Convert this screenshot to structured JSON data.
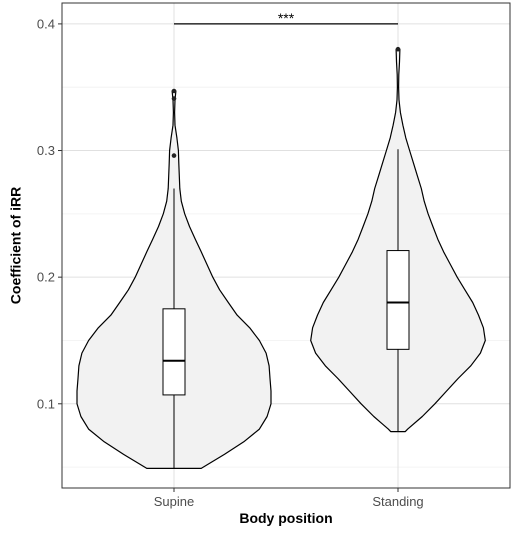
{
  "chart_data": {
    "type": "violin",
    "title": "",
    "xlabel": "Body position",
    "ylabel": "Coefficient of iRR",
    "categories": [
      "Supine",
      "Standing"
    ],
    "ylim": [
      0.0335,
      0.4165
    ],
    "yticks": [
      0.1,
      0.2,
      0.3,
      0.4
    ],
    "ytick_labels": [
      "0.1",
      "0.2",
      "0.3",
      "0.4"
    ],
    "grid": true,
    "fill_color": "#f2f2f2",
    "line_color": "#000000",
    "groups": [
      {
        "label": "Supine",
        "box": {
          "min": 0.049,
          "q1": 0.107,
          "median": 0.134,
          "q3": 0.175,
          "max": 0.27
        },
        "outliers": [
          0.347,
          0.341,
          0.296
        ],
        "density": [
          [
            0.049,
            0.28
          ],
          [
            0.06,
            0.52
          ],
          [
            0.07,
            0.72
          ],
          [
            0.08,
            0.88
          ],
          [
            0.09,
            0.96
          ],
          [
            0.1,
            1.0
          ],
          [
            0.11,
            1.0
          ],
          [
            0.12,
            0.99
          ],
          [
            0.13,
            0.98
          ],
          [
            0.14,
            0.95
          ],
          [
            0.15,
            0.88
          ],
          [
            0.16,
            0.78
          ],
          [
            0.17,
            0.65
          ],
          [
            0.18,
            0.56
          ],
          [
            0.19,
            0.47
          ],
          [
            0.2,
            0.4
          ],
          [
            0.21,
            0.34
          ],
          [
            0.22,
            0.28
          ],
          [
            0.23,
            0.22
          ],
          [
            0.24,
            0.16
          ],
          [
            0.25,
            0.11
          ],
          [
            0.26,
            0.075
          ],
          [
            0.27,
            0.06
          ],
          [
            0.28,
            0.055
          ],
          [
            0.29,
            0.05
          ],
          [
            0.3,
            0.045
          ],
          [
            0.31,
            0.03
          ],
          [
            0.32,
            0.01
          ],
          [
            0.33,
            0.006
          ],
          [
            0.34,
            0.01
          ],
          [
            0.347,
            0.02
          ]
        ]
      },
      {
        "label": "Standing",
        "box": {
          "min": 0.078,
          "q1": 0.143,
          "median": 0.18,
          "q3": 0.221,
          "max": 0.301
        },
        "outliers": [
          0.38
        ],
        "density": [
          [
            0.078,
            0.075
          ],
          [
            0.08,
            0.1
          ],
          [
            0.09,
            0.25
          ],
          [
            0.1,
            0.38
          ],
          [
            0.11,
            0.5
          ],
          [
            0.12,
            0.62
          ],
          [
            0.13,
            0.75
          ],
          [
            0.14,
            0.85
          ],
          [
            0.15,
            0.9
          ],
          [
            0.16,
            0.88
          ],
          [
            0.17,
            0.83
          ],
          [
            0.18,
            0.77
          ],
          [
            0.19,
            0.69
          ],
          [
            0.2,
            0.61
          ],
          [
            0.21,
            0.54
          ],
          [
            0.22,
            0.47
          ],
          [
            0.23,
            0.41
          ],
          [
            0.24,
            0.36
          ],
          [
            0.25,
            0.31
          ],
          [
            0.26,
            0.27
          ],
          [
            0.27,
            0.24
          ],
          [
            0.28,
            0.2
          ],
          [
            0.29,
            0.16
          ],
          [
            0.3,
            0.12
          ],
          [
            0.31,
            0.08
          ],
          [
            0.32,
            0.05
          ],
          [
            0.33,
            0.025
          ],
          [
            0.34,
            0.01
          ],
          [
            0.35,
            0.006
          ],
          [
            0.36,
            0.008
          ],
          [
            0.37,
            0.015
          ],
          [
            0.38,
            0.02
          ]
        ]
      }
    ],
    "significance": {
      "from": "Supine",
      "to": "Standing",
      "y": 0.4,
      "label": "***"
    }
  }
}
